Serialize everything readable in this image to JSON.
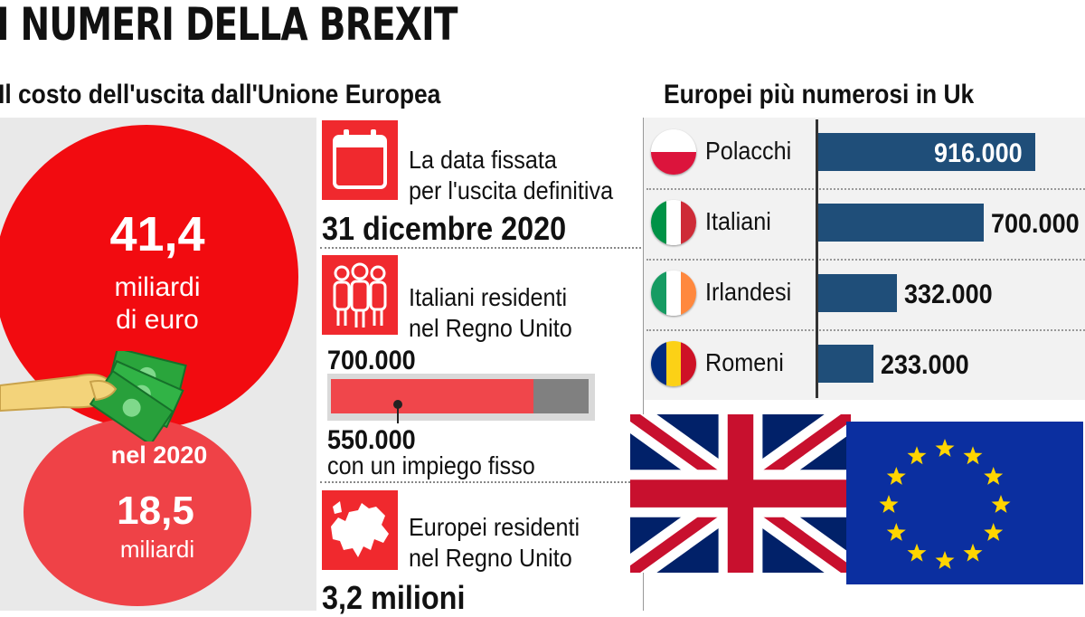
{
  "title": "I NUMERI DELLA BREXIT",
  "left_section": {
    "heading": "Il costo dell'uscita dall'Unione Europea",
    "total_cost": {
      "value": "41,4",
      "unit_line1": "miliardi",
      "unit_line2": "di euro"
    },
    "year_cost": {
      "label": "nel 2020",
      "value": "18,5",
      "unit": "miliardi"
    }
  },
  "middle_section": {
    "exit_date": {
      "label_line1": "La data fissata",
      "label_line2": "per l'uscita definitiva",
      "value": "31 dicembre 2020"
    },
    "italian_residents": {
      "label_line1": "Italiani residenti",
      "label_line2": "nel Regno Unito",
      "total": "700.000",
      "employed": "550.000",
      "employed_label": "con un impiego fisso",
      "employed_fraction": 0.7857
    },
    "european_residents": {
      "label_line1": "Europei residenti",
      "label_line2": "nel Regno Unito",
      "value": "3,2 milioni"
    }
  },
  "right_section": {
    "heading": "Europei più numerosi in Uk"
  },
  "chart_data": {
    "type": "bar",
    "orientation": "horizontal",
    "title": "Europei più numerosi in Uk",
    "categories": [
      "Polacchi",
      "Italiani",
      "Irlandesi",
      "Romeni"
    ],
    "values": [
      916000,
      700000,
      332000,
      233000
    ],
    "value_labels": [
      "916.000",
      "700.000",
      "332.000",
      "233.000"
    ],
    "bar_color": "#1f4e79"
  },
  "flags": [
    "uk-flag",
    "eu-flag"
  ],
  "colors": {
    "accent_red": "#f20b10",
    "light_red": "#ef4247",
    "navy": "#1f4e79",
    "eu_blue": "#0b2fa0",
    "eu_star": "#ffd500"
  }
}
